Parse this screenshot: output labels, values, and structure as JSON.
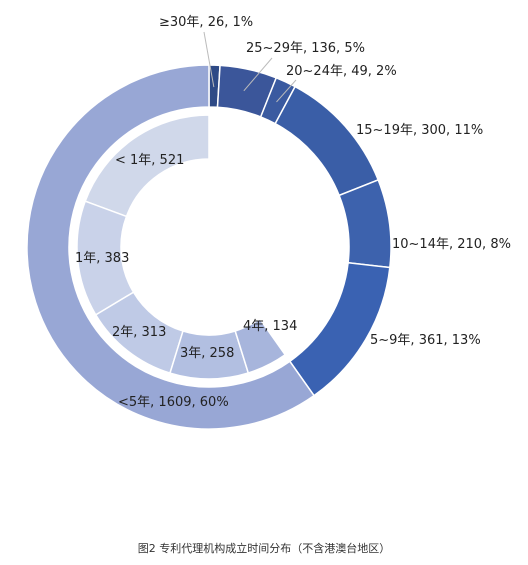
{
  "caption": "图2 专利代理机构成立时间分布（不含港澳台地区）",
  "chart_data": {
    "type": "pie",
    "style": "nested-donut",
    "outer_ring": [
      {
        "label": "<5年, 1609, 60%",
        "value": 1609,
        "color": "#98a7d5"
      },
      {
        "label": "5~9年, 361, 13%",
        "value": 361,
        "color": "#3a62b2"
      },
      {
        "label": "10~14年, 210, 8%",
        "value": 210,
        "color": "#3d62ad"
      },
      {
        "label": "15~19年, 300, 11%",
        "value": 300,
        "color": "#3a5ea7"
      },
      {
        "label": "20~24年, 49, 2%",
        "value": 49,
        "color": "#3a5aa0"
      },
      {
        "label": "25~29年, 136, 5%",
        "value": 136,
        "color": "#3b569a"
      },
      {
        "label": "≥30年, 26, 1%",
        "value": 26,
        "color": "#2e4a86"
      }
    ],
    "inner_ring": [
      {
        "label": "< 1年, 521",
        "value": 521,
        "color": "#d0d8ea"
      },
      {
        "label": "1年, 383",
        "value": 383,
        "color": "#c9d2e9"
      },
      {
        "label": "2年, 313",
        "value": 313,
        "color": "#bfcae6"
      },
      {
        "label": "3年, 258",
        "value": 258,
        "color": "#b2bfe1"
      },
      {
        "label": "4年, 134",
        "value": 134,
        "color": "#a7b5dc"
      }
    ]
  }
}
